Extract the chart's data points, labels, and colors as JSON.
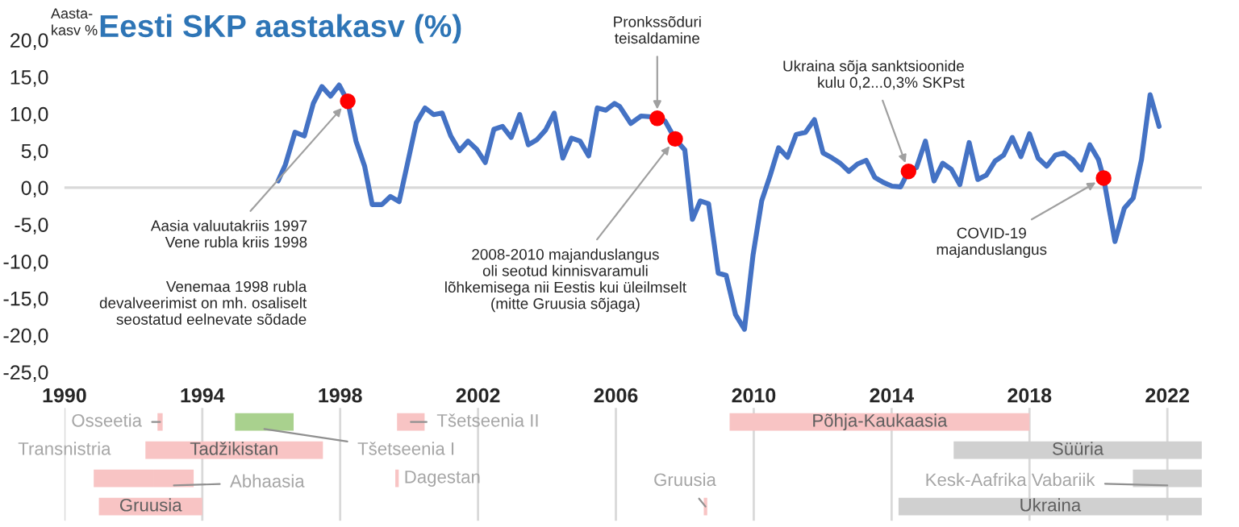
{
  "chart_data": [
    {
      "type": "line",
      "title": "Eesti SKP aastakasv (%)",
      "ylabel": "Aasta-\nkasv %",
      "xlim": [
        1990,
        2023
      ],
      "xticks": [
        1990,
        1994,
        1998,
        2002,
        2006,
        2010,
        2014,
        2018,
        2022
      ],
      "ylim": [
        -25,
        20
      ],
      "yticks": [
        {
          "value": 20,
          "label": "20,0"
        },
        {
          "value": 15,
          "label": "15,0"
        },
        {
          "value": 10,
          "label": "10,0"
        },
        {
          "value": 5,
          "label": "5,0"
        },
        {
          "value": 0,
          "label": "0,0"
        },
        {
          "value": -5,
          "label": "-5,0"
        },
        {
          "value": -10,
          "label": "-10,0"
        },
        {
          "value": -15,
          "label": "-15,0"
        },
        {
          "value": -20,
          "label": "-20,0"
        },
        {
          "value": -25,
          "label": "-25,0"
        }
      ],
      "grid": false,
      "marker": "none",
      "line_style": "solid",
      "ref_lines": [
        {
          "axis": "y",
          "value": 0,
          "color": "#d9d9d9"
        }
      ],
      "series": [
        {
          "color": "#4472c4",
          "x": [
            1996.2,
            1996.41,
            1996.69,
            1996.96,
            1997.22,
            1997.47,
            1997.72,
            1997.97,
            1998.22,
            1998.46,
            1998.71,
            1998.93,
            1999.21,
            1999.46,
            1999.71,
            1999.96,
            2000.21,
            2000.46,
            2000.71,
            2000.96,
            2001.21,
            2001.46,
            2001.71,
            2001.96,
            2002.21,
            2002.46,
            2002.71,
            2002.96,
            2003.21,
            2003.46,
            2003.71,
            2003.96,
            2004.21,
            2004.46,
            2004.71,
            2004.96,
            2005.21,
            2005.46,
            2005.71,
            2005.96,
            2006.11,
            2006.43,
            2006.73,
            2007.04,
            2007.2,
            2007.43,
            2007.72,
            2008.0,
            2008.22,
            2008.45,
            2008.69,
            2008.97,
            2009.2,
            2009.47,
            2009.73,
            2009.98,
            2010.23,
            2010.48,
            2010.72,
            2010.98,
            2011.23,
            2011.5,
            2011.76,
            2012.01,
            2012.28,
            2012.51,
            2012.76,
            2013.01,
            2013.26,
            2013.51,
            2013.76,
            2014.01,
            2014.26,
            2014.49,
            2014.72,
            2014.98,
            2015.23,
            2015.48,
            2015.73,
            2015.98,
            2016.25,
            2016.5,
            2016.75,
            2017.0,
            2017.25,
            2017.5,
            2017.75,
            2018.0,
            2018.25,
            2018.5,
            2018.75,
            2019.0,
            2019.25,
            2019.5,
            2019.75,
            2020.0,
            2020.15,
            2020.48,
            2020.75,
            2021.01,
            2021.25,
            2021.5,
            2021.76
          ],
          "values": [
            0.9,
            3.1,
            7.5,
            7.0,
            11.4,
            13.7,
            12.4,
            13.9,
            11.7,
            6.3,
            2.9,
            -2.3,
            -2.3,
            -1.2,
            -1.9,
            3.4,
            8.8,
            10.8,
            9.9,
            10.1,
            7.0,
            5.0,
            6.3,
            5.2,
            3.4,
            7.9,
            8.3,
            6.8,
            9.9,
            5.8,
            6.5,
            7.8,
            10.1,
            4.0,
            6.7,
            6.3,
            4.3,
            10.8,
            10.5,
            11.4,
            11.0,
            8.7,
            9.7,
            9.6,
            9.4,
            9.0,
            6.6,
            5.1,
            -4.3,
            -1.8,
            -2.2,
            -11.6,
            -11.9,
            -17.2,
            -19.2,
            -9.1,
            -1.8,
            1.7,
            5.4,
            4.1,
            7.2,
            7.5,
            9.2,
            4.7,
            4.0,
            3.3,
            2.2,
            3.2,
            3.7,
            1.4,
            0.7,
            0.2,
            0.1,
            2.2,
            2.7,
            6.3,
            0.9,
            3.3,
            2.5,
            0.4,
            6.1,
            1.1,
            1.7,
            3.6,
            4.4,
            6.8,
            4.2,
            7.3,
            4.0,
            2.9,
            4.4,
            4.7,
            3.8,
            2.4,
            5.8,
            3.8,
            1.3,
            -7.3,
            -2.8,
            -1.4,
            3.8,
            12.6,
            8.3
          ]
        }
      ],
      "annotations": [
        {
          "text": "Aasia valuutakriis 1997\nVene rubla kriis 1998",
          "x": 1998.22,
          "y": 11.7
        },
        "Venemaa 1998 rubla\ndevalveerimist on mh. osaliselt\nseostatud eelnevate sõdade",
        {
          "text": "Pronkssõduri\nteisaldamine",
          "x": 2007.2,
          "y": 9.4
        },
        {
          "text": "2008-2010 majanduslangus\noli seotud kinnisvaramuli\nlõhkemisega nii Eestis kui üleilmselt\n(mitte Gruusia sõjaga)",
          "x": 2007.72,
          "y": 6.6
        },
        {
          "text": "Ukraina sõja sanktsioonide\nkulu 0,2...0,3% SKPst",
          "x": 2014.49,
          "y": 2.2
        },
        {
          "text": "COVID-19\nmajanduslangus",
          "x": 2020.15,
          "y": 1.3
        }
      ]
    },
    {
      "type": "bar",
      "orientation": "horizontal",
      "categories": [
        null,
        null,
        null,
        null
      ],
      "xlim": [
        1990,
        2023
      ],
      "xticks": [
        1990,
        1994,
        1998,
        2002,
        2006,
        2010,
        2014,
        2018,
        2022
      ],
      "grid": "x",
      "tick_labels": false,
      "legend": false,
      "annotations": [
        "Transnistria"
      ],
      "series": [
        {
          "name": "Osseetia",
          "color": "#f8c4c4",
          "base": [
            1992.7,
            null,
            null,
            null
          ],
          "values": [
            0.15,
            null,
            null,
            null
          ]
        },
        {
          "name": "Tšetseenia I",
          "color": "#a9d18e",
          "base": [
            1994.95,
            null,
            null,
            null
          ],
          "values": [
            1.7,
            null,
            null,
            null
          ]
        },
        {
          "name": "Tšetseenia II",
          "color": "#f8c4c4",
          "base": [
            1999.65,
            null,
            null,
            null
          ],
          "values": [
            0.8,
            null,
            null,
            null
          ]
        },
        {
          "name": "Põhja-Kaukaasia",
          "color": "#f8c4c4",
          "base": [
            2009.3,
            null,
            null,
            null
          ],
          "values": [
            8.7,
            null,
            null,
            null
          ]
        },
        {
          "name": "Tadžikistan",
          "color": "#f8c4c4",
          "base": [
            null,
            1992.35,
            null,
            null
          ],
          "values": [
            null,
            5.15,
            null,
            null
          ]
        },
        {
          "name": "Süüria",
          "color": "#d0d0d0",
          "base": [
            null,
            2015.8,
            null,
            null
          ],
          "values": [
            null,
            7.2,
            null,
            null
          ]
        },
        {
          "color": "#f8c4c4",
          "base": [
            null,
            null,
            1990.85,
            null
          ],
          "values": [
            null,
            null,
            1.75,
            null
          ]
        },
        {
          "name": "Abhaasia",
          "color": "#f8c4c4",
          "base": [
            null,
            null,
            1992.6,
            null
          ],
          "values": [
            null,
            null,
            1.15,
            null
          ]
        },
        {
          "name": "Dagestan",
          "color": "#f8c4c4",
          "base": [
            null,
            null,
            1999.6,
            null
          ],
          "values": [
            null,
            null,
            0.1,
            null
          ]
        },
        {
          "name": "Kesk-Aafrika Vabariik",
          "color": "#d0d0d0",
          "base": [
            null,
            null,
            2021.0,
            null
          ],
          "values": [
            null,
            null,
            2.0,
            null
          ]
        },
        {
          "name": "Gruusia",
          "color": "#f8c4c4",
          "base": [
            null,
            null,
            null,
            1991.0
          ],
          "values": [
            null,
            null,
            null,
            3.0
          ]
        },
        {
          "name": "Gruusia",
          "color": "#f8c4c4",
          "base": [
            null,
            null,
            null,
            2008.55
          ],
          "values": [
            null,
            null,
            null,
            0.1
          ]
        },
        {
          "name": "Ukraina",
          "color": "#d0d0d0",
          "base": [
            null,
            null,
            null,
            2014.2
          ],
          "values": [
            null,
            null,
            null,
            8.8
          ]
        }
      ]
    }
  ]
}
